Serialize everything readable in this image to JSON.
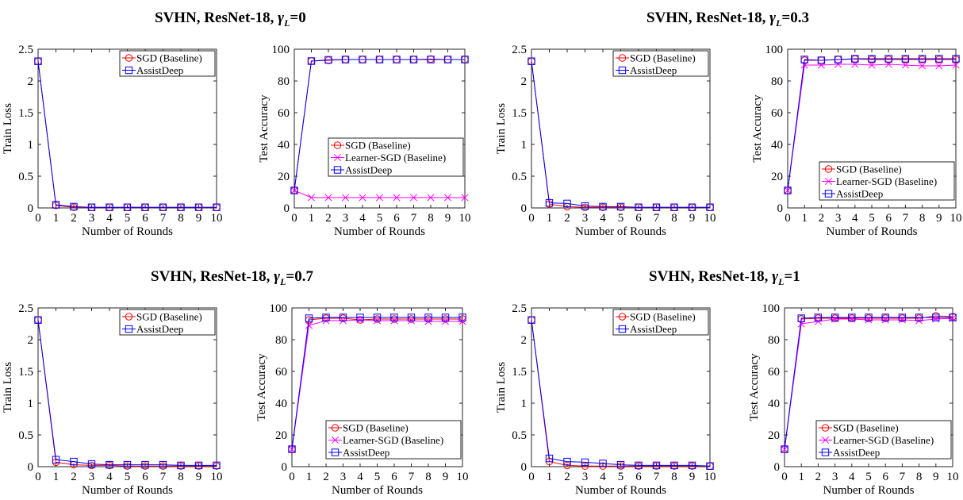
{
  "titles": [
    {
      "prefix": "SVHN, ResNet-18, ",
      "sym": "γ",
      "sub": "L",
      "suffix": "=0"
    },
    {
      "prefix": "SVHN, ResNet-18, ",
      "sym": "γ",
      "sub": "L",
      "suffix": "=0.3"
    },
    {
      "prefix": "SVHN, ResNet-18, ",
      "sym": "γ",
      "sub": "L",
      "suffix": "=0.7"
    },
    {
      "prefix": "SVHN, ResNet-18, ",
      "sym": "γ",
      "sub": "L",
      "suffix": "=1"
    }
  ],
  "colors": {
    "sgd": "#ff0000",
    "learner": "#ff00ff",
    "assist": "#0000ff"
  },
  "chart_data": [
    {
      "type": "line",
      "xlabel": "Number of Rounds",
      "ylabel": "Train Loss",
      "xlim": [
        0,
        10
      ],
      "ylim": [
        0,
        2.5
      ],
      "x": [
        0,
        1,
        2,
        3,
        4,
        5,
        6,
        7,
        8,
        9,
        10
      ],
      "xticks": [
        "0",
        "1",
        "2",
        "3",
        "4",
        "5",
        "6",
        "7",
        "8",
        "9",
        "10"
      ],
      "yticks": [
        "0",
        "0.5",
        "1",
        "1.5",
        "2",
        "2.5"
      ],
      "legend": "top-right",
      "series": [
        {
          "name": "SGD (Baseline)",
          "marker": "circle",
          "color": "#ff0000",
          "values": [
            2.31,
            0.04,
            0.01,
            0.01,
            0.01,
            0.01,
            0.01,
            0.01,
            0.01,
            0.01,
            0.01
          ]
        },
        {
          "name": "AssistDeep",
          "marker": "square",
          "color": "#0000ff",
          "values": [
            2.31,
            0.05,
            0.02,
            0.01,
            0.01,
            0.01,
            0.01,
            0.01,
            0.01,
            0.01,
            0.01
          ]
        }
      ]
    },
    {
      "type": "line",
      "xlabel": "Number of Rounds",
      "ylabel": "Test Accuracy",
      "xlim": [
        0,
        10
      ],
      "ylim": [
        0,
        100
      ],
      "x": [
        0,
        1,
        2,
        3,
        4,
        5,
        6,
        7,
        8,
        9,
        10
      ],
      "xticks": [
        "0",
        "1",
        "2",
        "3",
        "4",
        "5",
        "6",
        "7",
        "8",
        "9",
        "10"
      ],
      "yticks": [
        "0",
        "20",
        "40",
        "60",
        "80",
        "100"
      ],
      "legend": "center-right",
      "series": [
        {
          "name": "SGD (Baseline)",
          "marker": "circle",
          "color": "#ff0000",
          "values": [
            11,
            92.5,
            93,
            93.5,
            93.5,
            93.5,
            93.5,
            93.5,
            93.8,
            93.5,
            93.5
          ]
        },
        {
          "name": "Learner-SGD (Baseline)",
          "marker": "x",
          "color": "#ff00ff",
          "values": [
            11,
            6.5,
            6.5,
            6.5,
            6.5,
            6.5,
            6.5,
            6.5,
            6.5,
            6.5,
            6.5
          ]
        },
        {
          "name": "AssistDeep",
          "marker": "square",
          "color": "#0000ff",
          "values": [
            11,
            92.5,
            93.3,
            93.5,
            93.5,
            93.5,
            93.5,
            93.5,
            93.5,
            93.5,
            93.5
          ]
        }
      ]
    },
    {
      "type": "line",
      "xlabel": "Number of Rounds",
      "ylabel": "Train Loss",
      "xlim": [
        0,
        10
      ],
      "ylim": [
        0,
        2.5
      ],
      "x": [
        0,
        1,
        2,
        3,
        4,
        5,
        6,
        7,
        8,
        9,
        10
      ],
      "xticks": [
        "0",
        "1",
        "2",
        "3",
        "4",
        "5",
        "6",
        "7",
        "8",
        "9",
        "10"
      ],
      "yticks": [
        "0",
        "0.5",
        "1",
        "1.5",
        "2",
        "2.5"
      ],
      "legend": "top-right",
      "series": [
        {
          "name": "SGD (Baseline)",
          "marker": "circle",
          "color": "#ff0000",
          "values": [
            2.31,
            0.06,
            0.02,
            0.01,
            0.01,
            0.01,
            0.01,
            0.01,
            0.01,
            0.01,
            0.01
          ]
        },
        {
          "name": "AssistDeep",
          "marker": "square",
          "color": "#0000ff",
          "values": [
            2.31,
            0.08,
            0.07,
            0.03,
            0.02,
            0.02,
            0.01,
            0.01,
            0.01,
            0.01,
            0.01
          ]
        }
      ]
    },
    {
      "type": "line",
      "xlabel": "Number of Rounds",
      "ylabel": "Test Accuracy",
      "xlim": [
        0,
        10
      ],
      "ylim": [
        0,
        100
      ],
      "x": [
        0,
        1,
        2,
        3,
        4,
        5,
        6,
        7,
        8,
        9,
        10
      ],
      "xticks": [
        "0",
        "1",
        "2",
        "3",
        "4",
        "5",
        "6",
        "7",
        "8",
        "9",
        "10"
      ],
      "yticks": [
        "0",
        "20",
        "40",
        "60",
        "80",
        "100"
      ],
      "legend": "bottom-right",
      "series": [
        {
          "name": "SGD (Baseline)",
          "marker": "circle",
          "color": "#ff0000",
          "values": [
            11,
            93,
            93,
            93.5,
            93.8,
            93.5,
            93.5,
            93.5,
            93.5,
            93.5,
            93.5
          ]
        },
        {
          "name": "Learner-SGD (Baseline)",
          "marker": "x",
          "color": "#ff00ff",
          "values": [
            11,
            90,
            90,
            90.5,
            90.5,
            90,
            90.5,
            90,
            89.5,
            89.5,
            90
          ]
        },
        {
          "name": "AssistDeep",
          "marker": "square",
          "color": "#0000ff",
          "values": [
            11,
            93.5,
            93,
            93.5,
            94,
            94,
            94,
            94,
            94,
            94,
            94
          ]
        }
      ]
    },
    {
      "type": "line",
      "xlabel": "Number of Rounds",
      "ylabel": "Train Loss",
      "xlim": [
        0,
        10
      ],
      "ylim": [
        0,
        2.5
      ],
      "x": [
        0,
        1,
        2,
        3,
        4,
        5,
        6,
        7,
        8,
        9,
        10
      ],
      "xticks": [
        "0",
        "1",
        "2",
        "3",
        "4",
        "5",
        "6",
        "7",
        "8",
        "9",
        "10"
      ],
      "yticks": [
        "0",
        "0.5",
        "1",
        "1.5",
        "2",
        "2.5"
      ],
      "legend": "top-right",
      "series": [
        {
          "name": "SGD (Baseline)",
          "marker": "circle",
          "color": "#ff0000",
          "values": [
            2.31,
            0.07,
            0.03,
            0.02,
            0.02,
            0.01,
            0.01,
            0.01,
            0.01,
            0.01,
            0.01
          ]
        },
        {
          "name": "AssistDeep",
          "marker": "square",
          "color": "#0000ff",
          "values": [
            2.31,
            0.11,
            0.08,
            0.04,
            0.03,
            0.03,
            0.03,
            0.03,
            0.02,
            0.02,
            0.02
          ]
        }
      ]
    },
    {
      "type": "line",
      "xlabel": "Number of Rounds",
      "ylabel": "Test Accuracy",
      "xlim": [
        0,
        10
      ],
      "ylim": [
        0,
        100
      ],
      "x": [
        0,
        1,
        2,
        3,
        4,
        5,
        6,
        7,
        8,
        9,
        10
      ],
      "xticks": [
        "0",
        "1",
        "2",
        "3",
        "4",
        "5",
        "6",
        "7",
        "8",
        "9",
        "10"
      ],
      "yticks": [
        "0",
        "20",
        "40",
        "60",
        "80",
        "100"
      ],
      "legend": "bottom-right",
      "series": [
        {
          "name": "SGD (Baseline)",
          "marker": "circle",
          "color": "#ff0000",
          "values": [
            11,
            92.5,
            93.5,
            93.5,
            92.5,
            93,
            93,
            93,
            93,
            93,
            93
          ]
        },
        {
          "name": "Learner-SGD (Baseline)",
          "marker": "x",
          "color": "#ff00ff",
          "values": [
            11,
            89,
            92,
            92,
            92.5,
            92,
            92,
            92,
            91.5,
            91.5,
            91.5
          ]
        },
        {
          "name": "AssistDeep",
          "marker": "square",
          "color": "#0000ff",
          "values": [
            11,
            93.5,
            94,
            94,
            94,
            94,
            94,
            94,
            94,
            94,
            94
          ]
        }
      ]
    },
    {
      "type": "line",
      "xlabel": "Number of Rounds",
      "ylabel": "Train Loss",
      "xlim": [
        0,
        10
      ],
      "ylim": [
        0,
        2.5
      ],
      "x": [
        0,
        1,
        2,
        3,
        4,
        5,
        6,
        7,
        8,
        9,
        10
      ],
      "xticks": [
        "0",
        "1",
        "2",
        "3",
        "4",
        "5",
        "6",
        "7",
        "8",
        "9",
        "10"
      ],
      "yticks": [
        "0",
        "0.5",
        "1",
        "1.5",
        "2",
        "2.5"
      ],
      "legend": "top-right",
      "series": [
        {
          "name": "SGD (Baseline)",
          "marker": "circle",
          "color": "#ff0000",
          "values": [
            2.31,
            0.08,
            0.02,
            0.01,
            0.01,
            0.01,
            0.01,
            0.01,
            0.01,
            0.01,
            0.01
          ]
        },
        {
          "name": "AssistDeep",
          "marker": "square",
          "color": "#0000ff",
          "values": [
            2.31,
            0.13,
            0.08,
            0.07,
            0.05,
            0.03,
            0.02,
            0.02,
            0.02,
            0.02,
            0.01
          ]
        }
      ]
    },
    {
      "type": "line",
      "xlabel": "Number of Rounds",
      "ylabel": "Test Accuracy",
      "xlim": [
        0,
        10
      ],
      "ylim": [
        0,
        100
      ],
      "x": [
        0,
        1,
        2,
        3,
        4,
        5,
        6,
        7,
        8,
        9,
        10
      ],
      "xticks": [
        "0",
        "1",
        "2",
        "3",
        "4",
        "5",
        "6",
        "7",
        "8",
        "9",
        "10"
      ],
      "yticks": [
        "0",
        "20",
        "40",
        "60",
        "80",
        "100"
      ],
      "legend": "bottom-right",
      "series": [
        {
          "name": "SGD (Baseline)",
          "marker": "circle",
          "color": "#ff0000",
          "values": [
            11,
            93,
            93.5,
            93.5,
            93.5,
            93.5,
            93.5,
            93.5,
            93.5,
            95,
            94.5
          ]
        },
        {
          "name": "Learner-SGD (Baseline)",
          "marker": "x",
          "color": "#ff00ff",
          "values": [
            11,
            90,
            91.5,
            93,
            93,
            92.5,
            92.5,
            92.5,
            92,
            93,
            93.5
          ]
        },
        {
          "name": "AssistDeep",
          "marker": "square",
          "color": "#0000ff",
          "values": [
            11,
            93.5,
            94,
            94,
            94,
            94,
            94,
            94,
            94,
            94,
            94
          ]
        }
      ]
    }
  ]
}
